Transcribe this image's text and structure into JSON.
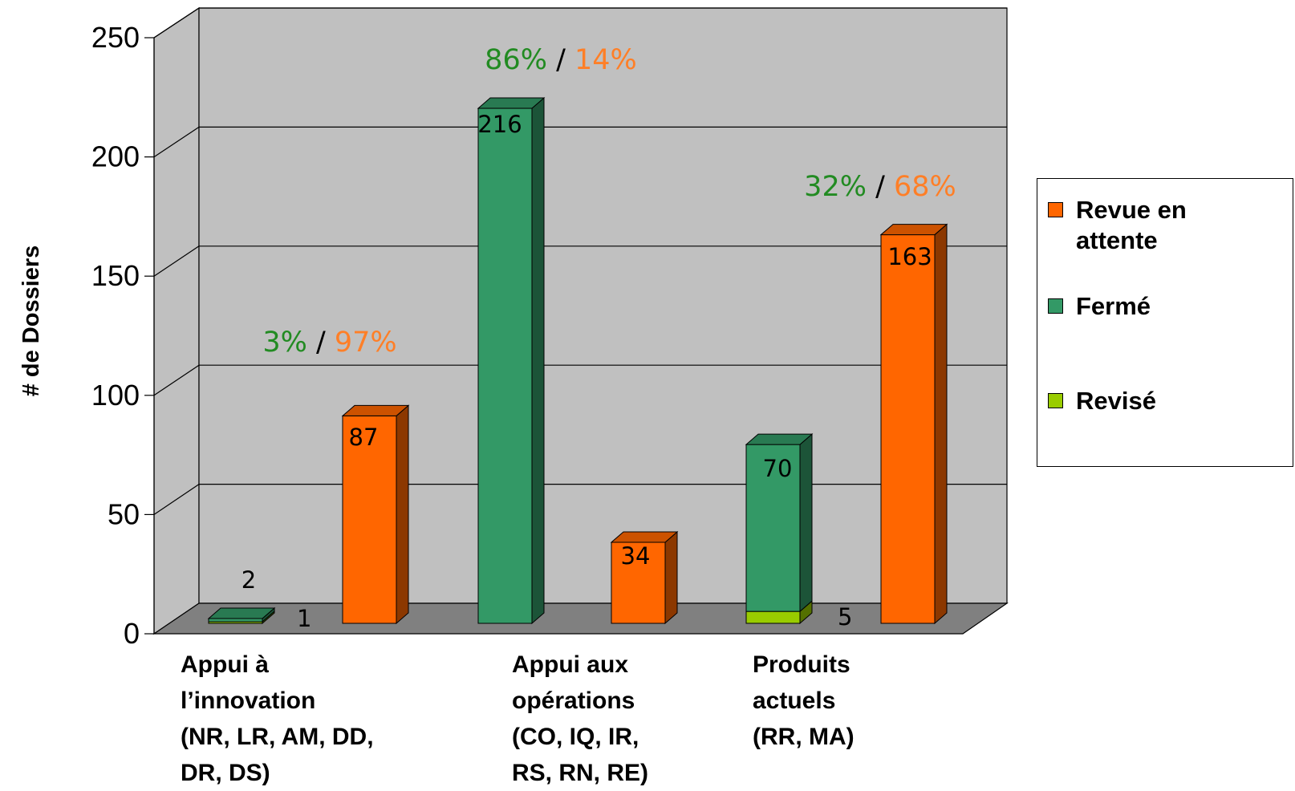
{
  "chart_data": {
    "type": "bar",
    "ylabel": "# de Dossiers",
    "ylim": [
      0,
      250
    ],
    "yticks": [
      0,
      50,
      100,
      150,
      200,
      250
    ],
    "grid": true,
    "legend_position": "right",
    "categories": [
      "Appui à l’innovation (NR, LR, AM, DD, DR, DS)",
      "Appui aux opérations (CO, IQ, IR, RS, RN, RE)",
      "Produits actuels (RR, MA)"
    ],
    "series": [
      {
        "name": "Revue en attente",
        "color": "#FF6600",
        "values": [
          87,
          34,
          163
        ]
      },
      {
        "name": "Fermé",
        "color": "#339966",
        "values": [
          2,
          216,
          70
        ]
      },
      {
        "name": "Revisé",
        "color": "#99CC00",
        "values": [
          1,
          0,
          5
        ]
      }
    ],
    "data_labels": [
      "2",
      "1",
      "87",
      "216",
      "34",
      "70",
      "5",
      "163"
    ],
    "annotations": [
      {
        "closed": "3%",
        "sep": "/",
        "pending": "97%"
      },
      {
        "closed": "86%",
        "sep": "/",
        "pending": "14%"
      },
      {
        "closed": "32%",
        "sep": "/",
        "pending": "68%"
      }
    ]
  },
  "category_lines": [
    [
      "Appui à",
      "l’innovation",
      "(NR, LR, AM, DD,",
      "DR, DS)"
    ],
    [
      "Appui aux",
      "opérations",
      "(CO, IQ, IR,",
      "RS, RN, RE)"
    ],
    [
      "Produits",
      "actuels",
      "(RR, MA)"
    ]
  ],
  "legend": {
    "items": [
      {
        "label_lines": [
          "Revue en",
          "attente"
        ],
        "color": "#FF6600"
      },
      {
        "label_lines": [
          "Fermé"
        ],
        "color": "#339966"
      },
      {
        "label_lines": [
          "Revisé"
        ],
        "color": "#99CC00"
      }
    ]
  },
  "colors": {
    "wall": "#C0C0C0",
    "floor": "#808080",
    "closed_text": "#228B22",
    "pending_text": "#FF7F27"
  }
}
